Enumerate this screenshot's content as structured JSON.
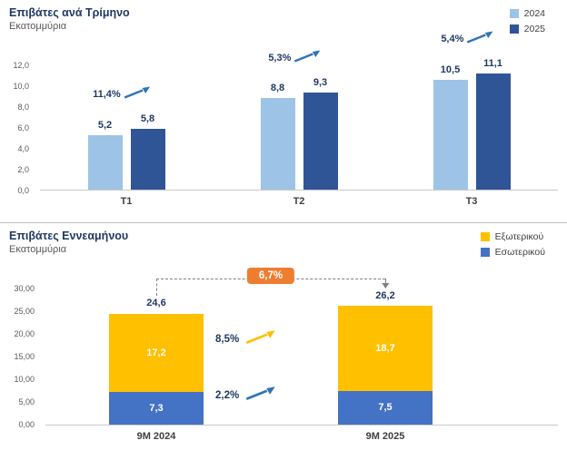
{
  "page": {
    "background": "#FFFFFF"
  },
  "chart_data": [
    {
      "type": "bar",
      "title": "Επιβάτες ανά Τρίμηνο",
      "subtitle": "Εκατομμύρια",
      "categories": [
        "T1",
        "T2",
        "T3"
      ],
      "series": [
        {
          "name": "2024",
          "color": "#9DC3E6",
          "values": [
            5.2,
            8.8,
            10.5
          ],
          "labels": [
            "5,2",
            "8,8",
            "10,5"
          ]
        },
        {
          "name": "2025",
          "color": "#2F5597",
          "values": [
            5.8,
            9.3,
            11.1
          ],
          "labels": [
            "5,8",
            "9,3",
            "11,1"
          ]
        }
      ],
      "growth_labels": [
        "11,4%",
        "5,3%",
        "5,4%"
      ],
      "growth_arrow_color": "#2E74B5",
      "ylim": [
        0,
        12
      ],
      "ytick_labels": [
        "12,0",
        "10,0",
        "8,0",
        "6,0",
        "4,0",
        "2,0",
        "0,0"
      ],
      "legend_position": "top-right",
      "grid": false
    },
    {
      "type": "stacked-bar",
      "title": "Επιβάτες Εννεαμήνου",
      "subtitle": "Εκατομμύρια",
      "categories": [
        "9M 2024",
        "9M 2025"
      ],
      "series": [
        {
          "name": "Εξωτερικού",
          "color": "#FFC000",
          "values": [
            17.2,
            18.7
          ],
          "labels": [
            "17,2",
            "18,7"
          ],
          "growth_label": "8,5%",
          "growth_arrow_color": "#FFC000"
        },
        {
          "name": "Εσωτερικού",
          "color": "#4472C4",
          "values": [
            7.3,
            7.5
          ],
          "labels": [
            "7,3",
            "7,5"
          ],
          "growth_label": "2,2%",
          "growth_arrow_color": "#2E74B5"
        }
      ],
      "totals": {
        "values": [
          24.6,
          26.2
        ],
        "labels": [
          "24,6",
          "26,2"
        ],
        "growth_label": "6,7%",
        "badge_color": "#ED7D31"
      },
      "ylim": [
        0,
        30
      ],
      "ytick_labels": [
        "30,00",
        "25,00",
        "20,00",
        "15,00",
        "10,00",
        "5,00",
        "0,00"
      ],
      "legend_position": "top-right",
      "grid": false
    }
  ]
}
